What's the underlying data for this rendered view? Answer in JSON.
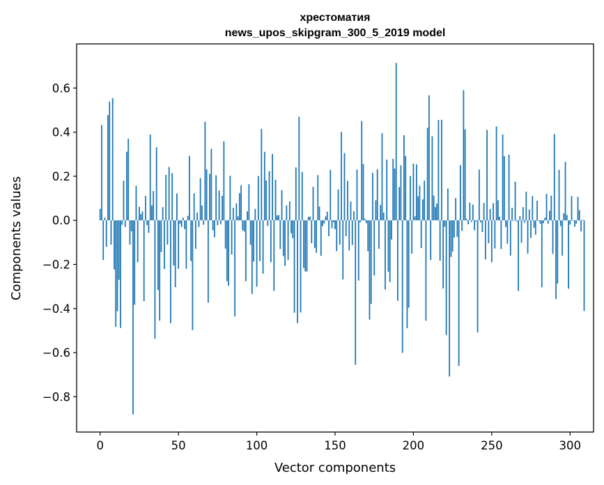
{
  "chart_data": {
    "type": "bar",
    "title": [
      "хрестоматия",
      "news_upos_skipgram_300_5_2019 model"
    ],
    "xlabel": "Vector components",
    "ylabel": "Components values",
    "xlim": [
      -15,
      315
    ],
    "ylim": [
      -0.96,
      0.8
    ],
    "xticks": [
      0,
      50,
      100,
      150,
      200,
      250,
      300
    ],
    "xtick_labels": [
      "0",
      "50",
      "100",
      "150",
      "200",
      "250",
      "300"
    ],
    "yticks": [
      -0.8,
      -0.6,
      -0.4,
      -0.2,
      0.0,
      0.2,
      0.4,
      0.6
    ],
    "ytick_labels": [
      "−0.8",
      "−0.6",
      "−0.4",
      "−0.2",
      "0.0",
      "0.2",
      "0.4",
      "0.6"
    ],
    "grid": false,
    "bar_color": "#1f77b4",
    "values": [
      0.052,
      0.432,
      -0.18,
      0.012,
      -0.12,
      0.477,
      0.538,
      -0.11,
      0.554,
      -0.223,
      -0.483,
      -0.412,
      -0.27,
      -0.488,
      -0.02,
      0.18,
      -0.03,
      0.311,
      0.37,
      -0.11,
      -0.05,
      -0.88,
      -0.383,
      0.156,
      -0.19,
      0.061,
      0.028,
      0.04,
      -0.367,
      0.111,
      -0.022,
      -0.057,
      0.389,
      0.067,
      0.133,
      -0.537,
      0.331,
      -0.316,
      -0.455,
      -0.144,
      0.06,
      -0.221,
      0.206,
      -0.11,
      0.242,
      -0.466,
      0.214,
      -0.205,
      -0.303,
      0.122,
      -0.22,
      -0.016,
      -0.03,
      0.012,
      -0.04,
      -0.22,
      0.02,
      0.292,
      -0.185,
      -0.498,
      0.123,
      -0.129,
      0.035,
      -0.03,
      0.191,
      0.067,
      -0.02,
      0.447,
      0.231,
      -0.373,
      0.211,
      0.324,
      -0.045,
      -0.077,
      0.204,
      -0.022,
      0.135,
      -0.017,
      0.111,
      0.358,
      -0.128,
      -0.276,
      -0.297,
      0.202,
      -0.155,
      0.057,
      -0.436,
      0.077,
      0.018,
      0.123,
      0.159,
      -0.045,
      -0.051,
      -0.276,
      0.041,
      0.164,
      -0.111,
      -0.334,
      -0.187,
      0.052,
      -0.301,
      0.201,
      -0.185,
      0.415,
      -0.242,
      0.311,
      0.181,
      -0.026,
      0.223,
      -0.19,
      0.301,
      -0.32,
      0.184,
      0.022,
      0.024,
      -0.13,
      0.137,
      -0.162,
      -0.207,
      0.068,
      -0.18,
      0.086,
      -0.059,
      -0.081,
      -0.419,
      0.24,
      -0.466,
      0.469,
      -0.418,
      0.22,
      -0.216,
      -0.232,
      -0.232,
      0.016,
      0.017,
      -0.104,
      0.152,
      -0.125,
      -0.147,
      0.205,
      0.062,
      -0.161,
      -0.027,
      -0.014,
      0.018,
      0.039,
      -0.072,
      0.229,
      -0.036,
      -0.009,
      -0.04,
      -0.14,
      0.14,
      -0.11,
      0.401,
      -0.268,
      0.305,
      -0.072,
      0.179,
      -0.136,
      0.085,
      -0.112,
      0.041,
      -0.655,
      0.23,
      -0.273,
      -0.009,
      0.45,
      0.255,
      0.007,
      -0.013,
      -0.14,
      -0.45,
      -0.379,
      0.215,
      -0.25,
      0.091,
      0.232,
      -0.129,
      0.069,
      0.395,
      0.035,
      -0.314,
      0.275,
      -0.233,
      -0.28,
      -0.087,
      0.279,
      0.235,
      0.714,
      -0.365,
      0.151,
      0.25,
      -0.601,
      0.386,
      0.292,
      -0.489,
      -0.396,
      0.201,
      -0.151,
      0.257,
      0.018,
      0.254,
      0.109,
      0.157,
      -0.126,
      0.095,
      0.18,
      -0.455,
      0.42,
      0.567,
      -0.18,
      0.381,
      0.112,
      0.06,
      0.076,
      0.455,
      -0.183,
      0.456,
      -0.309,
      -0.029,
      -0.52,
      0.144,
      -0.708,
      -0.166,
      -0.142,
      -0.078,
      0.101,
      -0.075,
      -0.66,
      0.25,
      -0.048,
      0.59,
      0.413,
      0.006,
      -0.018,
      0.08,
      -0.007,
      0.071,
      -0.045,
      -0.005,
      -0.508,
      0.23,
      -0.009,
      -0.053,
      0.079,
      -0.177,
      0.41,
      -0.104,
      0.051,
      -0.19,
      0.078,
      -0.128,
      0.426,
      0.091,
      0.016,
      -0.13,
      0.389,
      0.291,
      -0.03,
      -0.106,
      0.298,
      -0.16,
      0.057,
      -0.003,
      0.175,
      -0.005,
      -0.32,
      0.019,
      -0.102,
      0.06,
      -0.011,
      0.13,
      -0.151,
      0.049,
      -0.08,
      0.11,
      -0.034,
      -0.065,
      0.089,
      -0.004,
      -0.016,
      -0.304,
      -0.013,
      0.012,
      0.12,
      -0.016,
      0.044,
      0.112,
      -0.152,
      0.391,
      -0.357,
      -0.287,
      0.229,
      -0.026,
      -0.16,
      0.032,
      0.265,
      0.024,
      -0.31,
      -0.019,
      0.11,
      -0.003,
      -0.029,
      -0.015,
      0.107,
      0.046,
      -0.05,
      0.003,
      -0.411
    ]
  }
}
